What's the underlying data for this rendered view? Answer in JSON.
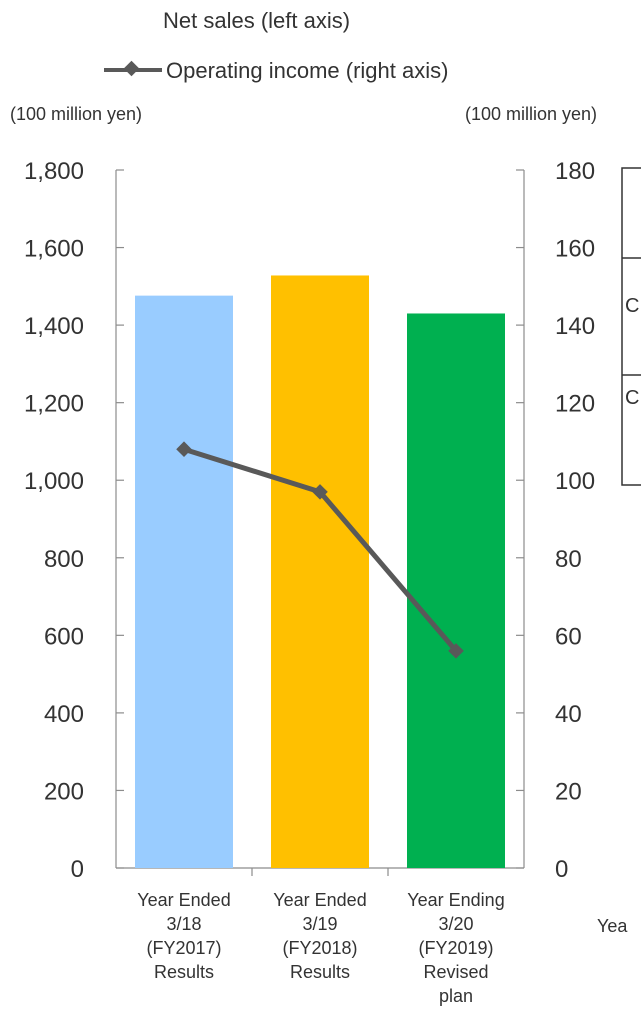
{
  "chart_data": {
    "type": "bar",
    "legend": {
      "position": "top",
      "entries": [
        {
          "label": "Net sales (left axis)"
        },
        {
          "label": "Operating income (right axis)"
        }
      ]
    },
    "y_left": {
      "unit": "(100 million yen)",
      "range": [
        0,
        1800
      ],
      "ticks": [
        "0",
        "200",
        "400",
        "600",
        "800",
        "1,000",
        "1,200",
        "1,400",
        "1,600",
        "1,800"
      ]
    },
    "y_right": {
      "unit": "(100 million yen)",
      "range": [
        0,
        180
      ],
      "ticks": [
        "0",
        "20",
        "40",
        "60",
        "80",
        "100",
        "120",
        "140",
        "160",
        "180"
      ]
    },
    "categories": [
      [
        "Year Ended",
        "3/18",
        "(FY2017)",
        "Results"
      ],
      [
        "Year Ended",
        "3/19",
        "(FY2018)",
        "Results"
      ],
      [
        "Year Ending",
        "3/20",
        "(FY2019)",
        "Revised",
        "plan"
      ]
    ],
    "series": [
      {
        "name": "Net sales (left axis)",
        "kind": "bar",
        "axis": "left",
        "values": [
          1476,
          1528,
          1430
        ],
        "colors": [
          "#99CCFF",
          "#FFC000",
          "#00B050"
        ]
      },
      {
        "name": "Operating income (right axis)",
        "kind": "line",
        "axis": "right",
        "values": [
          108,
          97,
          56
        ],
        "color": "#595959"
      }
    ],
    "grid": false
  },
  "partial_table": {
    "row_labels": [
      "C",
      "C"
    ],
    "bottom_label": "Yea"
  }
}
